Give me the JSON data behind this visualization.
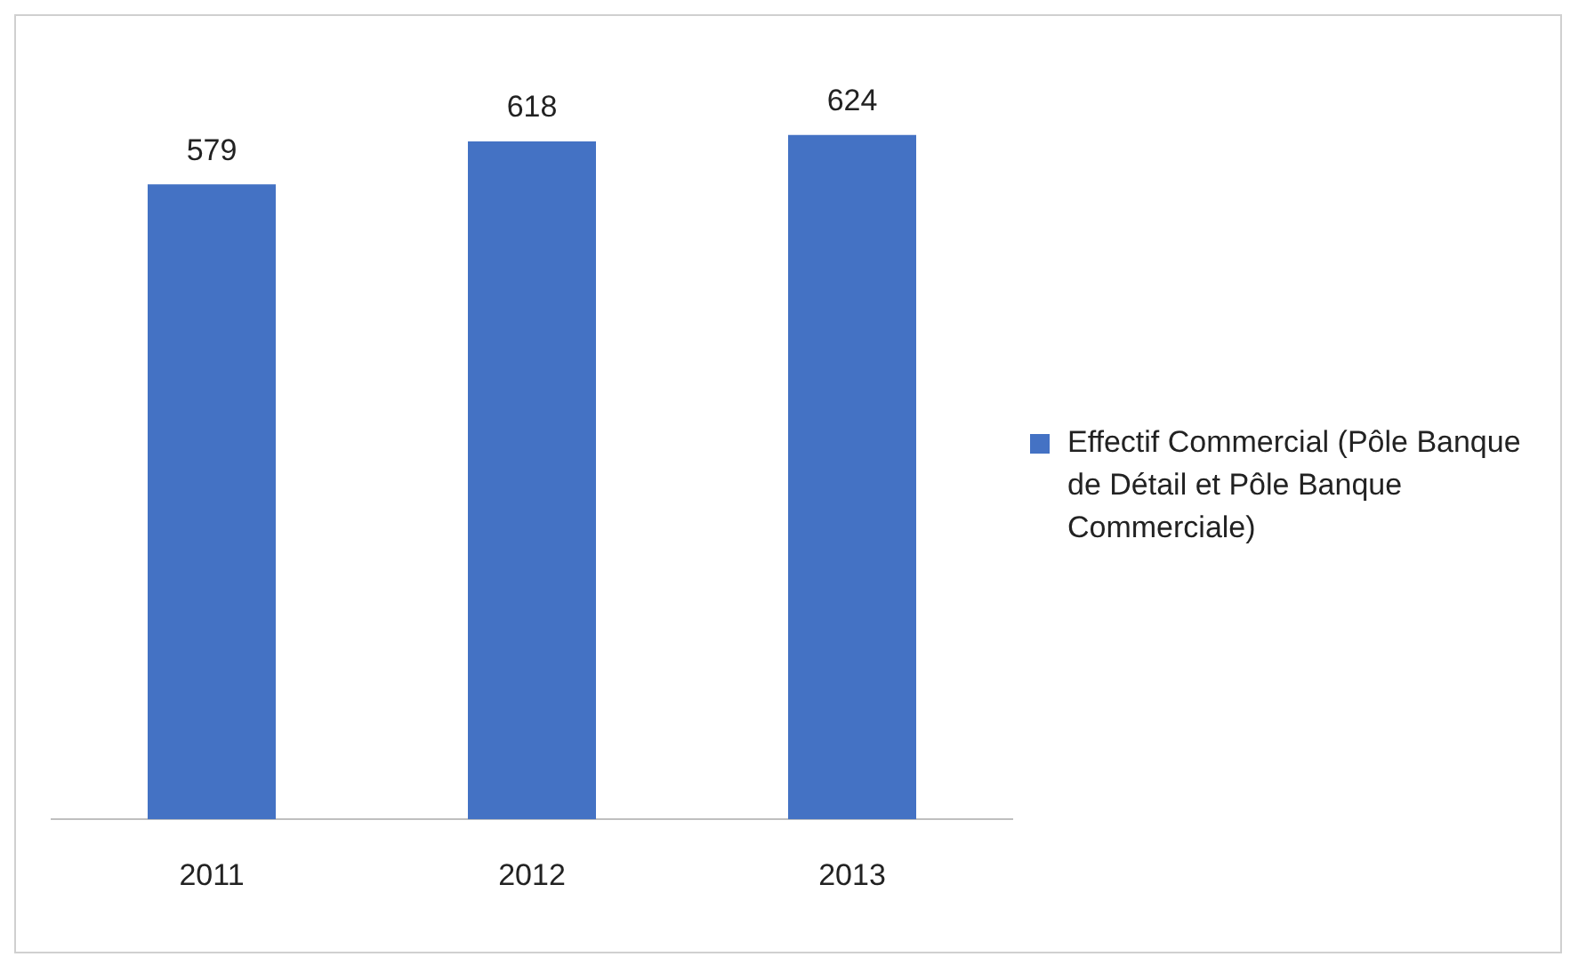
{
  "chart_data": {
    "type": "bar",
    "categories": [
      "2011",
      "2012",
      "2013"
    ],
    "series": [
      {
        "name": "Effectif Commercial (Pôle Banque de Détail et Pôle Banque Commerciale)",
        "color": "#4472c4",
        "values": [
          579,
          618,
          624
        ]
      }
    ],
    "tick_labels": "x",
    "data_labels": true,
    "grid": false,
    "legend": "right"
  }
}
